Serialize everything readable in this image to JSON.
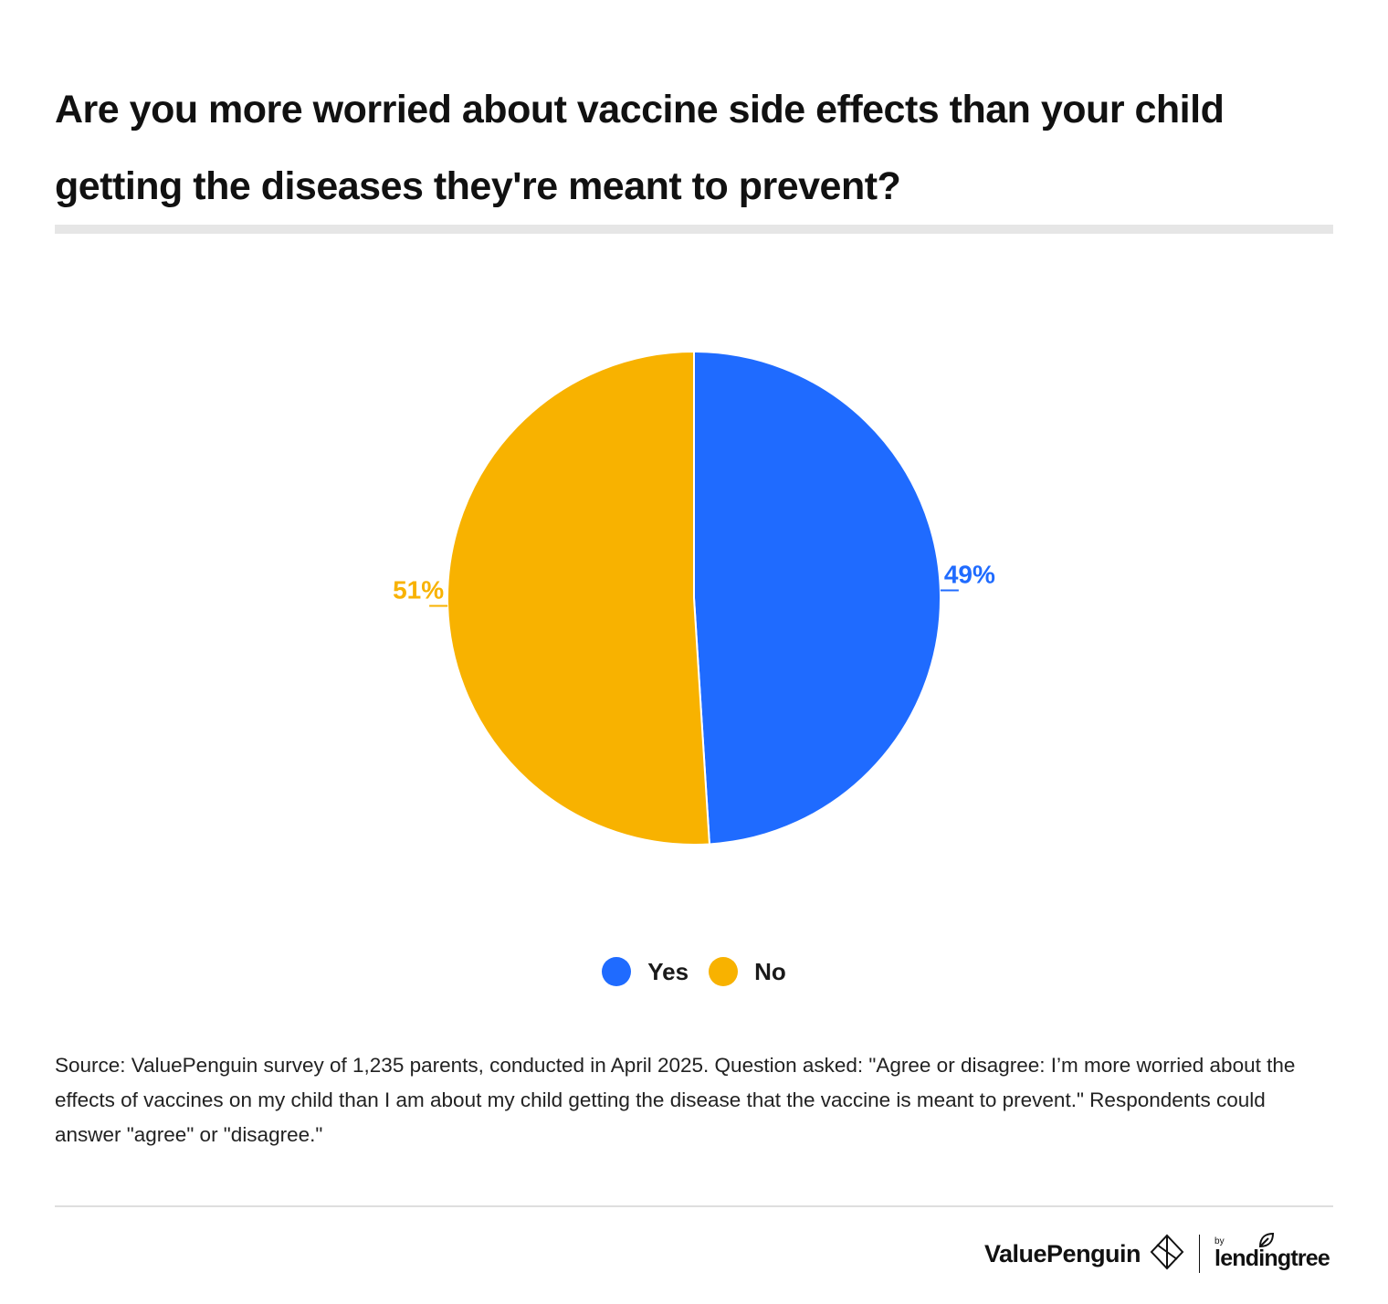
{
  "title": "Are you more worried about vaccine side effects than your child getting the diseases they're meant to prevent?",
  "chart_data": {
    "type": "pie",
    "categories": [
      "Yes",
      "No"
    ],
    "values": [
      49,
      51
    ],
    "labels": [
      "49%",
      "51%"
    ],
    "colors": [
      "#1F6BFF",
      "#F8B200"
    ],
    "start_angle": "12 o'clock",
    "direction": "clockwise",
    "legend": "bottom-center"
  },
  "legend": {
    "items": [
      {
        "label": "Yes",
        "color": "#1F6BFF"
      },
      {
        "label": "No",
        "color": "#F8B200"
      }
    ]
  },
  "source": "Source: ValuePenguin survey of 1,235 parents, conducted in April 2025. Question asked: \"Agree or disagree: I’m more worried about the effects of vaccines on my child than I am about my child getting the disease that the vaccine is meant to prevent.\" Respondents could answer \"agree\" or \"disagree.\"",
  "brand": {
    "name": "ValuePenguin",
    "by": "by",
    "partner": "lendingtree"
  }
}
